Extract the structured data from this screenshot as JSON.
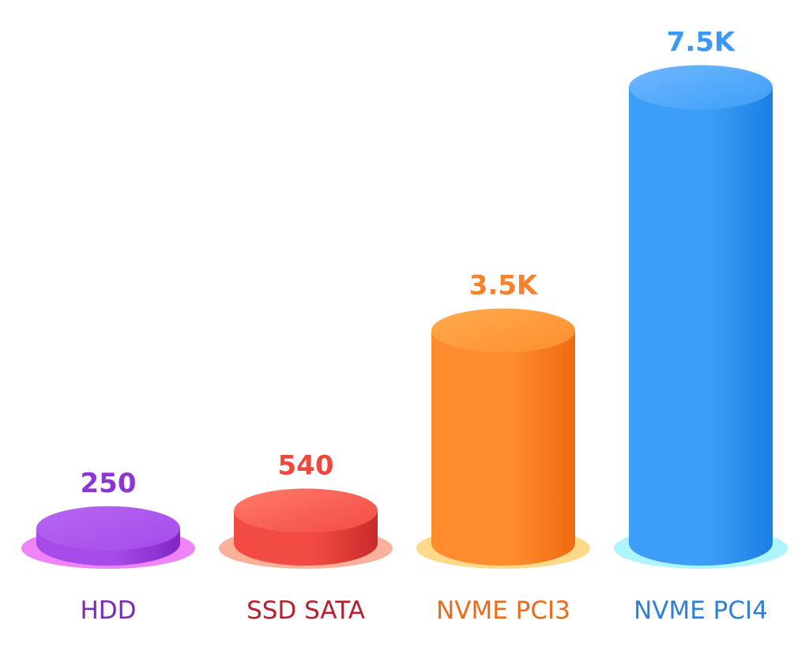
{
  "chart_data": {
    "type": "bar",
    "style": "3d-cylinder",
    "categories": [
      "HDD",
      "SSD SATA",
      "NVME PCI3",
      "NVME PCI4"
    ],
    "values": [
      250,
      540,
      3500,
      7500
    ],
    "value_labels": [
      "250",
      "540",
      "3.5K",
      "7.5K"
    ],
    "title": "",
    "xlabel": "",
    "ylabel": "",
    "grid": false,
    "colors": [
      {
        "top": "#b466f2",
        "light": "#a64bea",
        "dark": "#7f27c4",
        "shadow": "#ee84f6",
        "label": "#7a2bb5",
        "value": "#8f35d6"
      },
      {
        "top": "#ff7b6b",
        "light": "#f24b43",
        "dark": "#c92a2a",
        "shadow": "#fbb09a",
        "label": "#b81f2e",
        "value": "#f0473c"
      },
      {
        "top": "#ffab4f",
        "light": "#ff8d2d",
        "dark": "#ee6a10",
        "shadow": "#ffd98a",
        "label": "#ea6b1a",
        "value": "#f9812c"
      },
      {
        "top": "#6fb8ff",
        "light": "#3d9ef7",
        "dark": "#1a7fe3",
        "shadow": "#aef4fb",
        "label": "#2f7fd6",
        "value": "#3b99f5"
      }
    ]
  }
}
